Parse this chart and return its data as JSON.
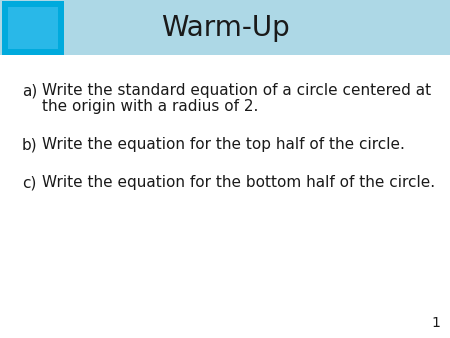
{
  "title": "Warm-Up",
  "title_fontsize": 20,
  "title_color": "#1a1a1a",
  "header_bg_color": "#add8e6",
  "outer_box_color": "#00aadd",
  "inner_box_color": "#29b8e8",
  "body_bg_color": "#ffffff",
  "items_a_label": "a)",
  "items_a_line1": "Write the standard equation of a circle centered at",
  "items_a_line2": "the origin with a radius of 2.",
  "items_b_label": "b)",
  "items_b_text": "Write the equation for the top half of the circle.",
  "items_c_label": "c)",
  "items_c_text": "Write the equation for the bottom half of the circle.",
  "item_fontsize": 11,
  "item_color": "#1a1a1a",
  "page_number": "1",
  "page_num_fontsize": 10,
  "fig_width": 4.5,
  "fig_height": 3.38,
  "dpi": 100
}
